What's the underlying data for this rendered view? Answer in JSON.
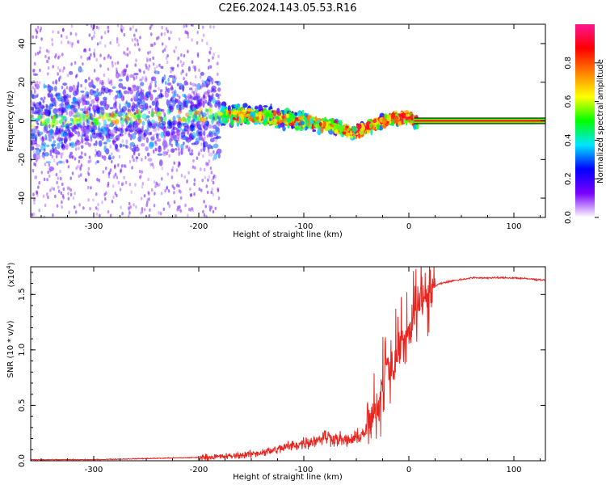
{
  "title": "C2E6.2024.143.05.53.R16",
  "chart_data": [
    {
      "type": "heatmap",
      "xlabel": "Height of straight line (km)",
      "ylabel": "Frequency (Hz)",
      "xlim": [
        -360,
        130
      ],
      "ylim": [
        -50,
        50
      ],
      "xticks": [
        -300,
        -200,
        -100,
        0,
        100
      ],
      "yticks": [
        -40,
        -20,
        0,
        20,
        40
      ],
      "ridge": {
        "x": [
          -360,
          -250,
          -200,
          -150,
          -120,
          -90,
          -70,
          -55,
          -45,
          -30,
          -15,
          0,
          5,
          130
        ],
        "y": [
          0,
          2,
          3,
          3,
          1,
          -1,
          -3,
          -6,
          -5,
          -1,
          1,
          2,
          0,
          0
        ]
      },
      "colorbar": {
        "label": "Normalized spectral amplitude",
        "ticks": [
          0.0,
          0.2,
          0.4,
          0.6,
          0.8
        ],
        "tick_labels": [
          "0.0",
          "0.2",
          "0.4",
          "0.6",
          "0.8"
        ],
        "range": [
          0,
          1
        ],
        "stops": [
          "#ffffff",
          "#7a00ff",
          "#0000ff",
          "#00e5ff",
          "#00ff00",
          "#ffff00",
          "#ff8000",
          "#ff0000",
          "#ff1493"
        ]
      }
    },
    {
      "type": "line",
      "xlabel": "Height of straight line (km)",
      "ylabel": "SNR (10 * v/v)",
      "yscale_label": "(x10",
      "yscale_exp": "4",
      "yscale_close": ")",
      "xlim": [
        -360,
        130
      ],
      "ylim": [
        0,
        1.75
      ],
      "xticks": [
        -300,
        -200,
        -100,
        0,
        100
      ],
      "yticks": [
        0.0,
        0.5,
        1.0,
        1.5
      ],
      "ytick_labels": [
        "0.0",
        "0.5",
        "1.0",
        "1.5"
      ],
      "series": [
        {
          "color": "#e8251f",
          "x": [
            -360,
            -300,
            -250,
            -200,
            -170,
            -150,
            -130,
            -110,
            -90,
            -80,
            -70,
            -60,
            -50,
            -40,
            -30,
            -25,
            -20,
            -15,
            -10,
            -5,
            0,
            5,
            10,
            20,
            30,
            40,
            60,
            80,
            100,
            130
          ],
          "y": [
            0.01,
            0.01,
            0.02,
            0.03,
            0.04,
            0.06,
            0.09,
            0.14,
            0.18,
            0.22,
            0.2,
            0.18,
            0.2,
            0.28,
            0.45,
            0.7,
            0.85,
            0.9,
            1.0,
            1.1,
            1.2,
            1.3,
            1.45,
            1.55,
            1.6,
            1.62,
            1.65,
            1.65,
            1.65,
            1.63
          ]
        }
      ]
    }
  ]
}
